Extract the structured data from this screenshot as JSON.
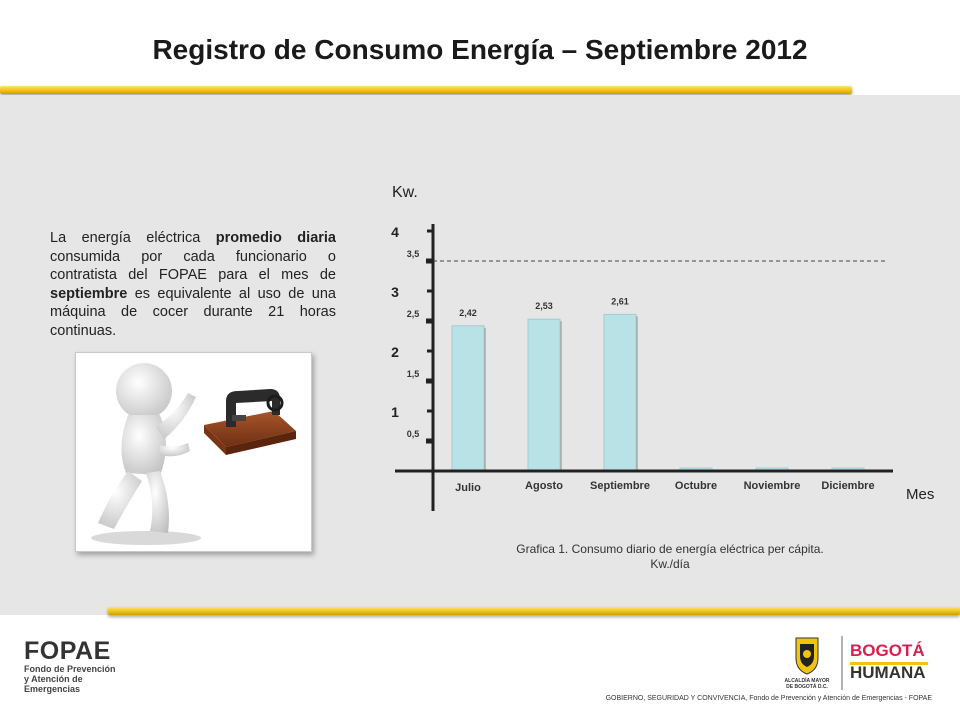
{
  "slide": {
    "title": "Registro de Consumo Energía – Septiembre 2012",
    "description": {
      "t1": "La energía eléctrica ",
      "b1": "promedio diaria",
      "t2": " consumida por cada funcionario o contratista del FOPAE para el mes de ",
      "b2": "septiembre",
      "t3": " es equivalente al uso de una máquina de cocer durante 21 horas continuas."
    },
    "caption_line1": "Grafica 1. Consumo diario de energía eléctrica per cápita.",
    "caption_line2": "Kw./día",
    "footer_note": "GOBIERNO, SEGURIDAD Y CONVIVENCIA, Fondo de Prevención y Atención de Emergencias - FOPAE",
    "logo_left": {
      "word": "FOPAE",
      "line1": "Fondo de Prevención",
      "line2": "y Atención de Emergencias"
    },
    "logo_right": {
      "alcaldia_line1": "ALCALDÍA MAYOR",
      "alcaldia_line2": "DE BOGOTÁ D.C.",
      "brand_top": "BOGOTÁ",
      "brand_bottom": "HUMANA"
    },
    "colors": {
      "accent_rule": "#f1c40f",
      "bar_fill": "#b8e2e6",
      "band": "#e6e6e6"
    }
  },
  "chart_data": {
    "type": "bar",
    "ylabel": "Kw.",
    "xlabel": "Mes",
    "categories": [
      "Julio",
      "Agosto",
      "Septiembre",
      "Octubre",
      "Noviembre",
      "Diciembre"
    ],
    "values": [
      2.42,
      2.53,
      2.61,
      0.05,
      0.05,
      0.05
    ],
    "data_labels": [
      "2,42",
      "2,53",
      "2,61",
      "",
      "",
      ""
    ],
    "ylim": [
      0,
      4
    ],
    "major_ticks": [
      "1",
      "2",
      "3",
      "4"
    ],
    "minor_ticks": [
      "0,5",
      "1,5",
      "2,5",
      "3,5"
    ],
    "reference_line": 3.5,
    "grid": false,
    "legend": "none"
  }
}
